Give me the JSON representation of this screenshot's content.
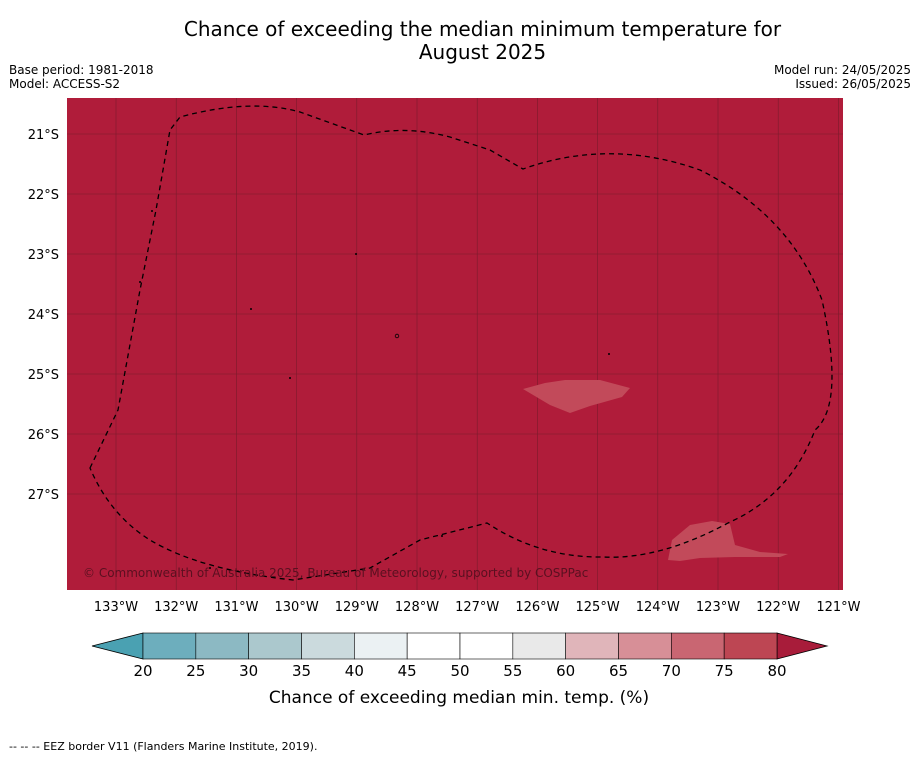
{
  "title_line1": "Chance of exceeding the median minimum temperature for",
  "title_line2": "August 2025",
  "base_period": "Base period: 1981-2018",
  "model": "Model: ACCESS-S2",
  "model_run": "Model run: 24/05/2025",
  "issued": "Issued: 26/05/2025",
  "copyright": "© Commonwealth of Australia 2025, Bureau of Meteorology, supported by COSPPac",
  "map": {
    "lat_labels": [
      "21°S",
      "22°S",
      "23°S",
      "24°S",
      "25°S",
      "26°S",
      "27°S"
    ],
    "lat_values": [
      -21,
      -22,
      -23,
      -24,
      -25,
      -26,
      -27
    ],
    "lon_labels": [
      "133°W",
      "132°W",
      "131°W",
      "130°W",
      "129°W",
      "128°W",
      "127°W",
      "126°W",
      "125°W",
      "124°W",
      "123°W",
      "122°W",
      "121°W"
    ],
    "lon_values": [
      -133,
      -132,
      -131,
      -130,
      -129,
      -128,
      -127,
      -126,
      -125,
      -124,
      -123,
      -122,
      -121
    ],
    "background_color": "#b01c3a",
    "patch_color": "#c24a5a"
  },
  "colorbar": {
    "ticks": [
      "20",
      "25",
      "30",
      "35",
      "40",
      "45",
      "50",
      "55",
      "60",
      "65",
      "70",
      "75",
      "80"
    ],
    "colors": [
      "#6daebd",
      "#8cb9c3",
      "#abc8cd",
      "#cbdadd",
      "#ebf1f3",
      "#ffffff",
      "#ffffff",
      "#e9e9e9",
      "#e0b5ba",
      "#d78f97",
      "#c96672",
      "#bd4653"
    ],
    "low_extend_color": "#4aa1b2",
    "high_extend_color": "#a81c3a",
    "label": "Chance of exceeding median min. temp. (%)"
  },
  "legend_text": "--  --  -- EEZ border V11 (Flanders Marine Institute, 2019)."
}
